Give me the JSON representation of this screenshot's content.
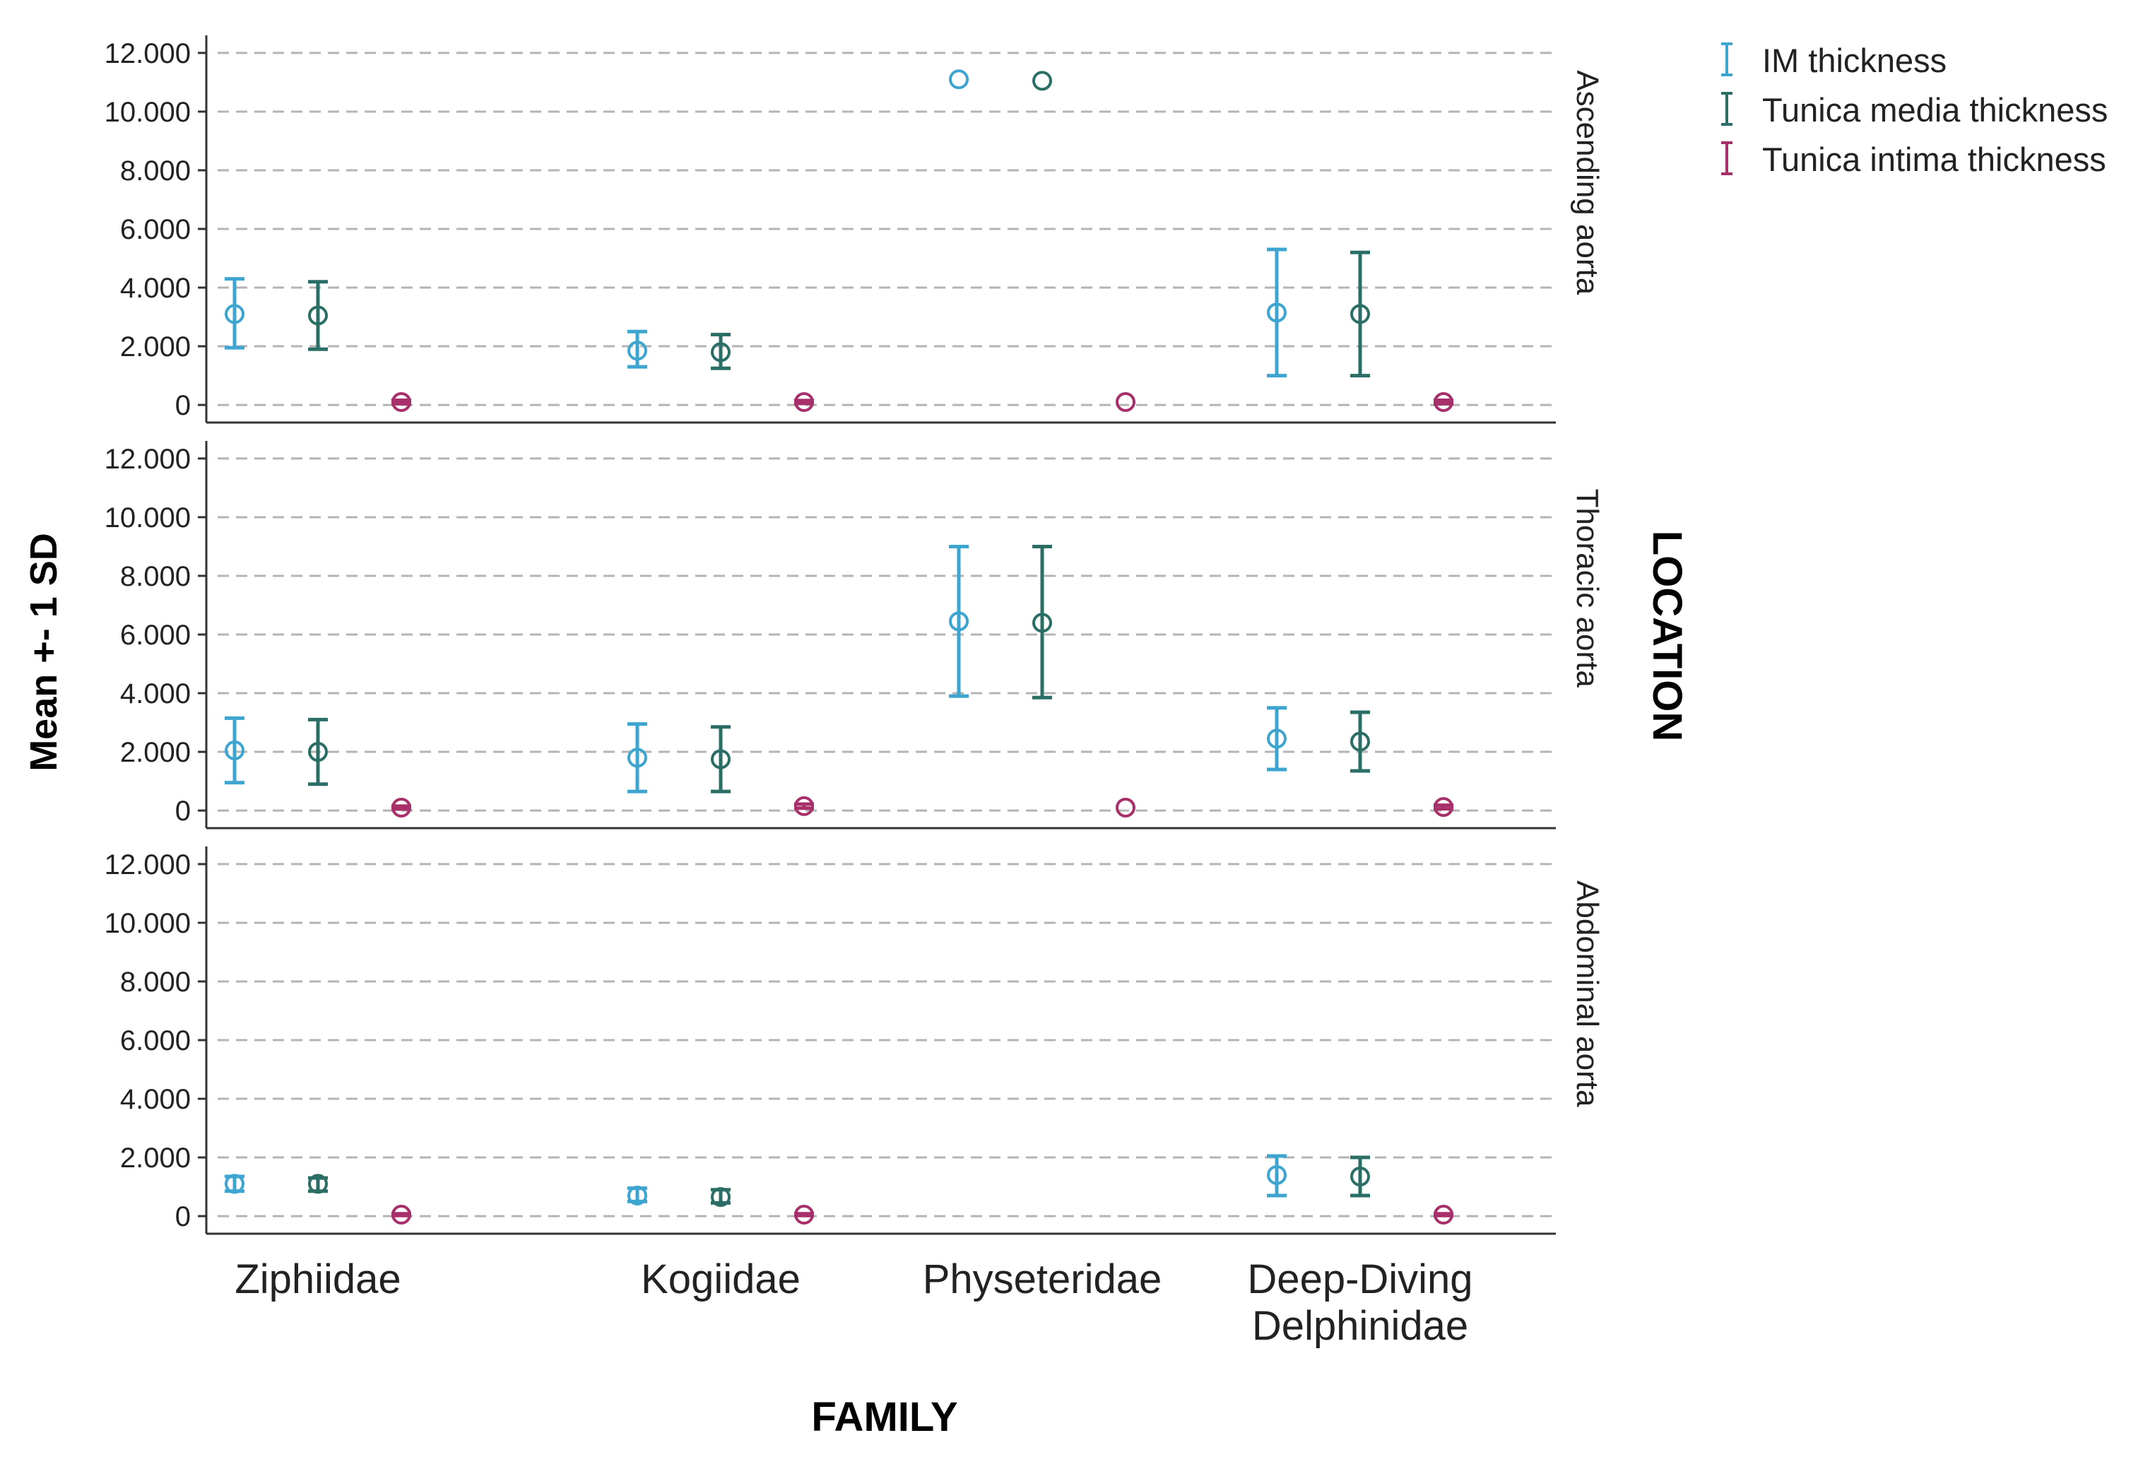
{
  "chart_data": {
    "type": "error-bar",
    "x_title": "FAMILY",
    "y_title": "Mean +- 1 SD",
    "facet_title": "LOCATION",
    "categories": [
      {
        "line1": "Ziphiidae",
        "line2": ""
      },
      {
        "line1": "Kogiidae",
        "line2": ""
      },
      {
        "line1": "Physeteridae",
        "line2": ""
      },
      {
        "line1": "Deep-Diving",
        "line2": "Delphinidae"
      }
    ],
    "y_ticks": [
      "0",
      "2.000",
      "4.000",
      "6.000",
      "8.000",
      "10.000",
      "12.000"
    ],
    "ylim": [
      -0.6,
      12.6
    ],
    "gridlines": "dashed",
    "legend": [
      {
        "name": "IM thickness",
        "color": "#3DA5D0"
      },
      {
        "name": "Tunica media thickness",
        "color": "#2A6E66"
      },
      {
        "name": "Tunica intima thickness",
        "color": "#A8306A"
      }
    ],
    "panels": [
      {
        "label": "Ascending aorta",
        "series": [
          {
            "name": "IM thickness",
            "mean": [
              3.1,
              1.85,
              11.1,
              3.15
            ],
            "low": [
              1.95,
              1.3,
              null,
              1.0
            ],
            "high": [
              4.3,
              2.5,
              null,
              5.3
            ]
          },
          {
            "name": "Tunica media thickness",
            "mean": [
              3.05,
              1.8,
              11.05,
              3.1
            ],
            "low": [
              1.9,
              1.25,
              null,
              1.0
            ],
            "high": [
              4.2,
              2.4,
              null,
              5.2
            ]
          },
          {
            "name": "Tunica intima thickness",
            "mean": [
              0.1,
              0.1,
              0.1,
              0.1
            ],
            "low": [
              0.04,
              0.05,
              null,
              0.04
            ],
            "high": [
              0.16,
              0.15,
              null,
              0.16
            ]
          }
        ]
      },
      {
        "label": "Thoracic aorta",
        "series": [
          {
            "name": "IM thickness",
            "mean": [
              2.05,
              1.8,
              6.45,
              2.45
            ],
            "low": [
              0.95,
              0.65,
              3.9,
              1.4
            ],
            "high": [
              3.15,
              2.95,
              9.0,
              3.5
            ]
          },
          {
            "name": "Tunica media thickness",
            "mean": [
              2.0,
              1.75,
              6.4,
              2.35
            ],
            "low": [
              0.9,
              0.65,
              3.85,
              1.35
            ],
            "high": [
              3.1,
              2.85,
              9.0,
              3.35
            ]
          },
          {
            "name": "Tunica intima thickness",
            "mean": [
              0.1,
              0.15,
              0.1,
              0.12
            ],
            "low": [
              0.05,
              0.08,
              null,
              0.06
            ],
            "high": [
              0.15,
              0.22,
              null,
              0.18
            ]
          }
        ]
      },
      {
        "label": "Abdominal aorta",
        "series": [
          {
            "name": "IM thickness",
            "mean": [
              1.1,
              0.7,
              null,
              1.4
            ],
            "low": [
              0.85,
              0.5,
              null,
              0.7
            ],
            "high": [
              1.35,
              0.95,
              null,
              2.05
            ]
          },
          {
            "name": "Tunica media thickness",
            "mean": [
              1.1,
              0.65,
              null,
              1.35
            ],
            "low": [
              0.85,
              0.45,
              null,
              0.7
            ],
            "high": [
              1.3,
              0.9,
              null,
              2.0
            ]
          },
          {
            "name": "Tunica intima thickness",
            "mean": [
              0.05,
              0.05,
              null,
              0.05
            ],
            "low": [
              0.02,
              0.02,
              null,
              0.02
            ],
            "high": [
              0.08,
              0.08,
              null,
              0.08
            ]
          }
        ]
      }
    ]
  }
}
